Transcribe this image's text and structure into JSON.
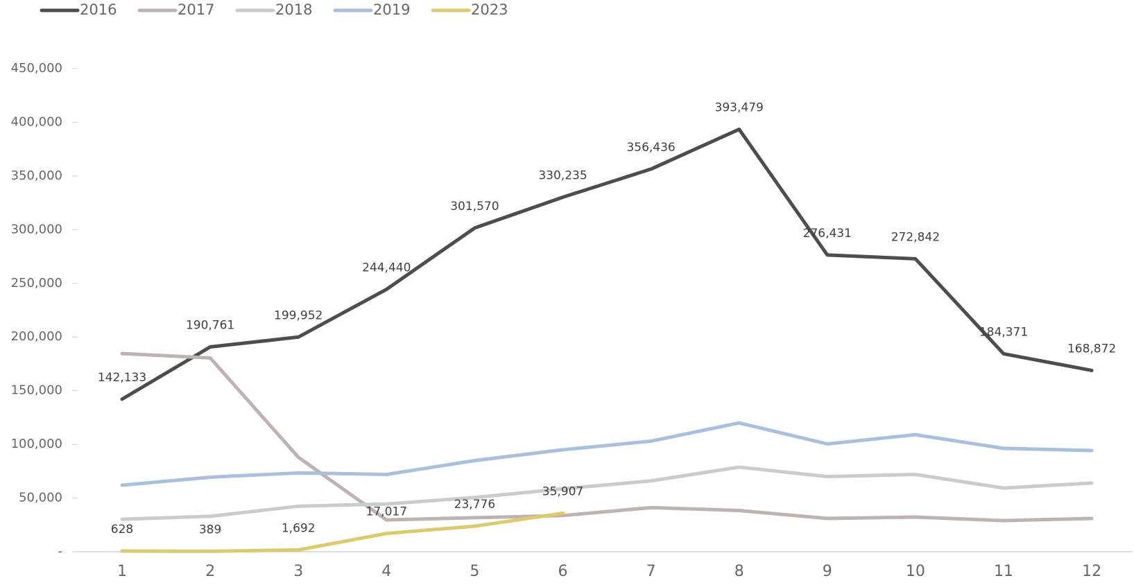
{
  "chart_data": {
    "type": "line",
    "categories": [
      "1",
      "2",
      "3",
      "4",
      "5",
      "6",
      "7",
      "8",
      "9",
      "10",
      "11",
      "12"
    ],
    "series": [
      {
        "name": "2016",
        "color": "#4d4d4d",
        "values": [
          142133,
          190761,
          199952,
          244440,
          301570,
          330235,
          356436,
          393479,
          276431,
          272842,
          184371,
          168872
        ],
        "value_labels": [
          "142,133",
          "190,761",
          "199,952",
          "244,440",
          "301,570",
          "330,235",
          "356,436",
          "393,479",
          "276,431",
          "272,842",
          "184,371",
          "168,872"
        ]
      },
      {
        "name": "2017",
        "color": "#bfb3b1",
        "values": [
          184600,
          180500,
          88000,
          29600,
          31700,
          33700,
          41100,
          38400,
          31000,
          32300,
          29000,
          31000
        ]
      },
      {
        "name": "2018",
        "color": "#c9cccc",
        "values": [
          30300,
          33000,
          42400,
          44500,
          50500,
          58600,
          66000,
          78800,
          70000,
          72000,
          59300,
          64000
        ]
      },
      {
        "name": "2019",
        "color": "#a9bfdc",
        "values": [
          62000,
          69400,
          73400,
          72000,
          84900,
          95000,
          103000,
          120000,
          100400,
          109000,
          96300,
          94300
        ]
      },
      {
        "name": "2023",
        "color": "#dccb6e",
        "values": [
          628,
          389,
          1692,
          17017,
          23776,
          35907,
          null,
          null,
          null,
          null,
          null,
          null
        ],
        "value_labels": [
          "628",
          "389",
          "1,692",
          "17,017",
          "23,776",
          "35,907",
          null,
          null,
          null,
          null,
          null,
          null
        ]
      }
    ],
    "ylim": [
      0,
      450000
    ],
    "yticks": [
      {
        "value": 0,
        "label": "-"
      },
      {
        "value": 50000,
        "label": "50,000"
      },
      {
        "value": 100000,
        "label": "100,000"
      },
      {
        "value": 150000,
        "label": "150,000"
      },
      {
        "value": 200000,
        "label": "200,000"
      },
      {
        "value": 250000,
        "label": "250,000"
      },
      {
        "value": 300000,
        "label": "300,000"
      },
      {
        "value": 350000,
        "label": "350,000"
      },
      {
        "value": 400000,
        "label": "400,000"
      },
      {
        "value": 450000,
        "label": "450,000"
      }
    ],
    "legend": "top-left"
  }
}
